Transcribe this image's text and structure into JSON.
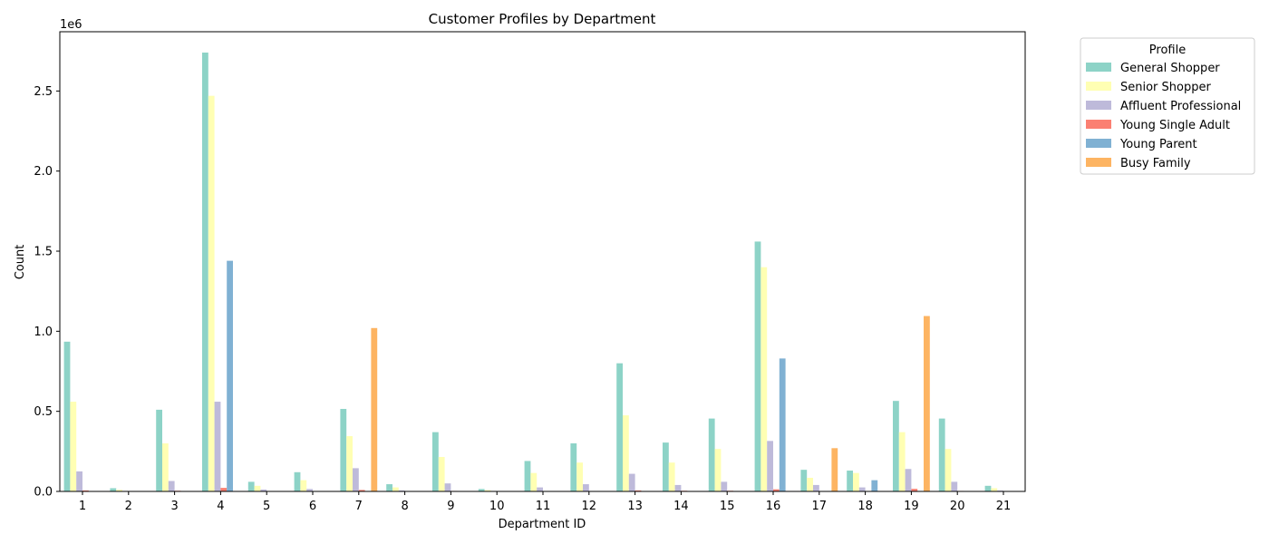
{
  "chart_data": {
    "type": "bar",
    "title": "Customer Profiles by Department",
    "xlabel": "Department ID",
    "ylabel": "Count",
    "y_offset_text": "1e6",
    "y_scale": 1000000,
    "ylim": [
      0,
      2.87
    ],
    "yticks": [
      0.0,
      0.5,
      1.0,
      1.5,
      2.0,
      2.5
    ],
    "ytick_labels": [
      "0.0",
      "0.5",
      "1.0",
      "1.5",
      "2.0",
      "2.5"
    ],
    "categories": [
      "1",
      "2",
      "3",
      "4",
      "5",
      "6",
      "7",
      "8",
      "9",
      "10",
      "11",
      "12",
      "13",
      "14",
      "15",
      "16",
      "17",
      "18",
      "19",
      "20",
      "21"
    ],
    "legend": {
      "title": "Profile",
      "placement": "outside-top-right"
    },
    "grid": false,
    "series": [
      {
        "name": "General Shopper",
        "color": "#8dd3c7",
        "values": [
          0.935,
          0.02,
          0.51,
          2.74,
          0.06,
          0.12,
          0.515,
          0.045,
          0.37,
          0.015,
          0.19,
          0.3,
          0.8,
          0.305,
          0.455,
          1.56,
          0.135,
          0.13,
          0.565,
          0.455,
          0.035
        ]
      },
      {
        "name": "Senior Shopper",
        "color": "#ffffb3",
        "values": [
          0.56,
          0.01,
          0.3,
          2.47,
          0.035,
          0.07,
          0.345,
          0.025,
          0.215,
          0.008,
          0.115,
          0.18,
          0.475,
          0.18,
          0.265,
          1.4,
          0.085,
          0.115,
          0.37,
          0.265,
          0.02
        ]
      },
      {
        "name": "Affluent Professional",
        "color": "#bebada",
        "values": [
          0.125,
          0.003,
          0.065,
          0.56,
          0.012,
          0.015,
          0.145,
          0.006,
          0.05,
          0.003,
          0.025,
          0.045,
          0.11,
          0.04,
          0.06,
          0.315,
          0.04,
          0.025,
          0.14,
          0.06,
          0.005
        ]
      },
      {
        "name": "Young Single Adult",
        "color": "#fb8072",
        "values": [
          0.006,
          0.0,
          0.004,
          0.022,
          0.0,
          0.0,
          0.009,
          0.0,
          0.003,
          0.0,
          0.002,
          0.002,
          0.006,
          0.004,
          0.004,
          0.013,
          0.001,
          0.0,
          0.016,
          0.003,
          0.0
        ]
      },
      {
        "name": "Young Parent",
        "color": "#80b1d3",
        "values": [
          0,
          0,
          0,
          1.44,
          0,
          0,
          0,
          0,
          0,
          0,
          0,
          0,
          0,
          0,
          0,
          0.83,
          0,
          0.07,
          0,
          0,
          0
        ]
      },
      {
        "name": "Busy Family",
        "color": "#fdb462",
        "values": [
          0,
          0,
          0,
          0,
          0,
          0,
          1.02,
          0,
          0,
          0,
          0,
          0,
          0,
          0,
          0,
          0,
          0.27,
          0,
          1.095,
          0,
          0
        ]
      }
    ]
  }
}
